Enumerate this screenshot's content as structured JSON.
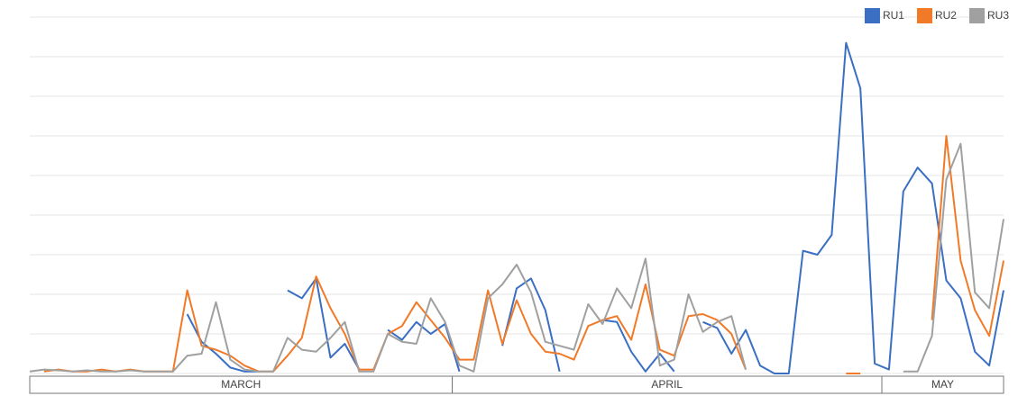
{
  "chart_data": {
    "type": "line",
    "categories": [
      null,
      null,
      null,
      null,
      null,
      null,
      null,
      null,
      null,
      null,
      null,
      null,
      null,
      null,
      null,
      null,
      null,
      null,
      null,
      null,
      null,
      null,
      null,
      null,
      null,
      null,
      null,
      null,
      null,
      null,
      null,
      null,
      null,
      null,
      null,
      null,
      null,
      null,
      null,
      null,
      null,
      null,
      null,
      null,
      null,
      null,
      null,
      null,
      null,
      null,
      null,
      null,
      null,
      null,
      null,
      null,
      null,
      null,
      null,
      null,
      null,
      null,
      null,
      null,
      null,
      null,
      null,
      null,
      null
    ],
    "groups": [
      {
        "label": "MARCH",
        "span": [
          0,
          29
        ]
      },
      {
        "label": "APRIL",
        "span": [
          30,
          59
        ]
      },
      {
        "label": "MAY",
        "span": [
          60,
          68
        ]
      }
    ],
    "series": [
      {
        "name": "RU1",
        "color": "#3a6fc4",
        "values": [
          null,
          null,
          null,
          null,
          null,
          null,
          null,
          null,
          null,
          null,
          null,
          1.5,
          0.8,
          0.5,
          0.15,
          0.05,
          0.05,
          null,
          2.1,
          1.9,
          2.4,
          0.4,
          0.75,
          0.1,
          null,
          1.1,
          0.85,
          1.3,
          1.0,
          1.25,
          0.05,
          null,
          null,
          0.7,
          2.15,
          2.4,
          1.6,
          0.05,
          null,
          null,
          1.35,
          1.3,
          0.55,
          0.05,
          0.5,
          0.05,
          null,
          1.3,
          1.15,
          0.5,
          1.1,
          0.2,
          0,
          0,
          3.1,
          3.0,
          3.5,
          8.35,
          7.2,
          0.25,
          0.1,
          4.6,
          5.2,
          4.8,
          2.35,
          1.9,
          0.55,
          0.2,
          2.1
        ]
      },
      {
        "name": "RU2",
        "color": "#f07a28",
        "values": [
          null,
          0.05,
          0.1,
          0.05,
          0.05,
          0.1,
          0.05,
          0.1,
          0.05,
          0.05,
          0.05,
          2.1,
          0.7,
          0.6,
          0.45,
          0.2,
          0.05,
          0.05,
          0.45,
          0.9,
          2.45,
          1.65,
          1.0,
          0.1,
          0.1,
          1.0,
          1.2,
          1.8,
          1.35,
          0.9,
          0.35,
          0.35,
          2.1,
          0.75,
          1.85,
          1.0,
          0.55,
          0.5,
          0.35,
          1.2,
          1.35,
          1.45,
          0.85,
          2.25,
          0.6,
          0.45,
          1.45,
          1.5,
          1.35,
          1.0,
          0.1,
          null,
          null,
          null,
          null,
          null,
          null,
          0,
          0,
          null,
          null,
          null,
          null,
          1.35,
          6.0,
          2.85,
          1.6,
          0.95,
          2.85
        ]
      },
      {
        "name": "RU3",
        "color": "#a0a0a0",
        "values": [
          0.05,
          0.1,
          0.08,
          0.05,
          0.08,
          0.05,
          0.05,
          0.08,
          0.05,
          0.05,
          0.05,
          0.45,
          0.5,
          1.8,
          0.35,
          0.1,
          0.05,
          0.05,
          0.9,
          0.6,
          0.55,
          0.9,
          1.3,
          0.05,
          0.05,
          1.0,
          0.8,
          0.75,
          1.9,
          1.3,
          0.2,
          0.05,
          1.9,
          2.25,
          2.75,
          2.05,
          0.8,
          0.7,
          0.6,
          1.75,
          1.25,
          2.15,
          1.65,
          2.9,
          0.2,
          0.35,
          2.0,
          1.05,
          1.3,
          1.45,
          0.1,
          null,
          null,
          null,
          null,
          null,
          null,
          null,
          null,
          null,
          null,
          0.05,
          0.05,
          0.95,
          4.9,
          5.8,
          2.05,
          1.65,
          3.9
        ]
      }
    ],
    "ylim": [
      0,
      9
    ],
    "yticks": [
      0,
      1,
      2,
      3,
      4,
      5,
      6,
      7,
      8,
      9
    ],
    "grid": true,
    "legend": "top-right"
  }
}
